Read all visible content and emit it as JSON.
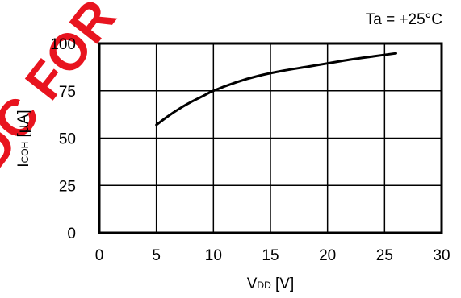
{
  "chart_data": {
    "type": "line",
    "annotation": "Ta = +25°C",
    "xlabel": {
      "main": "V",
      "sub": "DD",
      "unit": " [V]"
    },
    "ylabel": {
      "main": "I",
      "sub": "COH",
      "unit": " [µA]"
    },
    "xlim": [
      0,
      30
    ],
    "ylim": [
      0,
      100
    ],
    "x_ticks": [
      "0",
      "5",
      "10",
      "15",
      "20",
      "25",
      "30"
    ],
    "y_ticks": [
      "0",
      "25",
      "50",
      "75",
      "100"
    ],
    "grid": true,
    "series": [
      {
        "x": [
          5,
          6,
          7,
          8,
          9,
          10,
          12,
          14,
          16,
          18,
          20,
          22,
          24,
          26
        ],
        "y": [
          57,
          61.5,
          65.5,
          69,
          72,
          75,
          79.5,
          83,
          85.5,
          87.5,
          89.5,
          91.5,
          93.2,
          94.8
        ],
        "color": "#000000"
      }
    ]
  },
  "watermark": {
    "text": "DC FOR",
    "color": "#e8141f"
  }
}
